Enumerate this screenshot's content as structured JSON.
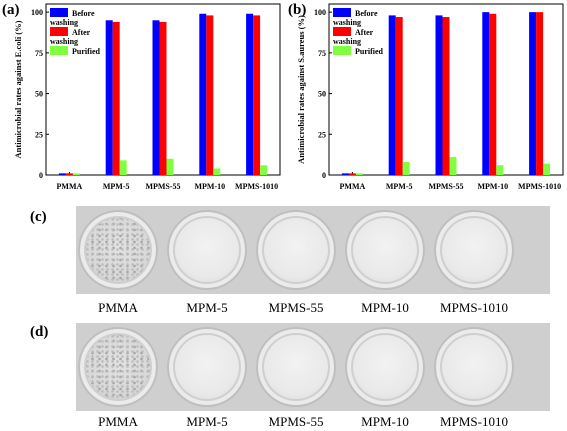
{
  "panels": {
    "a": "(a)",
    "b": "(b)",
    "c": "(c)",
    "d": "(d)"
  },
  "chart_data": [
    {
      "type": "bar",
      "ylabel": "Antimicrobial rates against E.coli (%)",
      "categories": [
        "PMMA",
        "MPM-5",
        "MPMS-55",
        "MPM-10",
        "MPMS-1010"
      ],
      "yticks": [
        0,
        25,
        50,
        75,
        100
      ],
      "ylim": [
        0,
        105
      ],
      "legend_position": "top-left",
      "series": [
        {
          "name": "Before washing",
          "color": "#0000ff",
          "values": [
            1,
            95,
            95,
            99,
            99
          ]
        },
        {
          "name": "After washing",
          "color": "#ff0000",
          "values": [
            1,
            94,
            94,
            98,
            98
          ]
        },
        {
          "name": "Purified",
          "color": "#7fff3f",
          "values": [
            1,
            9,
            10,
            4,
            6
          ]
        }
      ]
    },
    {
      "type": "bar",
      "ylabel": "Antimicrobial rates against S.aureus (%)",
      "categories": [
        "PMMA",
        "MPM-5",
        "MPMS-55",
        "MPM-10",
        "MPMS-1010"
      ],
      "yticks": [
        0,
        25,
        50,
        75,
        100
      ],
      "ylim": [
        0,
        105
      ],
      "legend_position": "top-left",
      "series": [
        {
          "name": "Before washing",
          "color": "#0000ff",
          "values": [
            1,
            98,
            98,
            100,
            100
          ]
        },
        {
          "name": "After washing",
          "color": "#ff0000",
          "values": [
            1,
            97,
            97,
            99,
            100
          ]
        },
        {
          "name": "Purified",
          "color": "#7fff3f",
          "values": [
            1,
            8,
            11,
            6,
            7
          ]
        }
      ]
    }
  ],
  "photo_rows": [
    {
      "labels": [
        "PMMA",
        "MPM-5",
        "MPMS-55",
        "MPM-10",
        "MPMS-1010"
      ]
    },
    {
      "labels": [
        "PMMA",
        "MPM-5",
        "MPMS-55",
        "MPM-10",
        "MPMS-1010"
      ]
    }
  ]
}
